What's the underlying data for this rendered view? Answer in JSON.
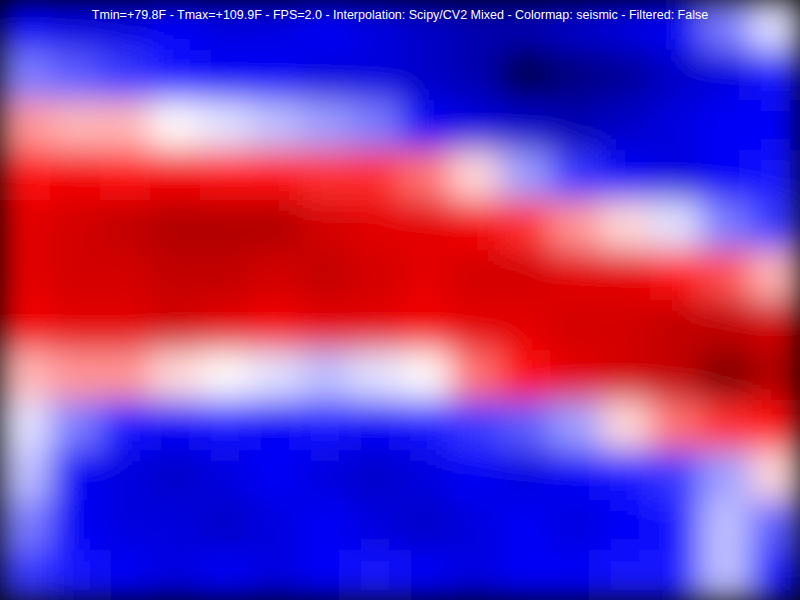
{
  "chart_data": {
    "type": "heatmap",
    "title": "Tmin=+79.8F - Tmax=+109.9F - FPS=2.0 - Interpolation: Scipy/CV2 Mixed - Colormap: seismic - Filtered: False",
    "color": "seismic",
    "tick_labels": false,
    "color_range": [
      79.8,
      109.9
    ],
    "cells": [
      [
        87,
        86,
        86,
        87,
        86,
        86,
        87,
        86,
        85,
        84,
        84,
        85,
        86,
        87,
        91,
        94
      ],
      [
        91,
        90,
        89,
        88,
        87,
        87,
        86,
        86,
        85,
        84,
        79.8,
        82,
        83,
        85,
        86,
        88
      ],
      [
        98,
        97,
        97,
        95,
        94,
        93,
        92,
        91,
        87,
        86,
        85,
        84,
        85,
        86,
        87,
        87
      ],
      [
        102,
        103,
        102,
        103,
        102,
        102,
        101,
        101,
        99,
        96,
        92,
        89,
        87,
        86,
        87,
        88
      ],
      [
        104,
        105,
        106,
        107,
        107,
        107,
        105,
        104,
        104,
        103,
        101,
        98,
        96,
        94,
        91,
        89
      ],
      [
        104,
        105,
        105,
        106,
        106,
        105,
        106,
        105,
        104,
        105,
        105,
        104,
        104,
        102,
        100,
        97
      ],
      [
        103,
        104,
        104,
        105,
        104,
        103,
        104,
        104,
        103,
        104,
        104,
        105,
        105,
        106,
        106,
        105
      ],
      [
        97,
        98,
        98,
        96,
        95,
        94,
        93,
        94,
        95,
        99,
        102,
        104,
        105,
        106,
        109.9,
        107
      ],
      [
        94,
        91,
        88,
        87,
        88,
        87,
        88,
        87,
        88,
        89,
        90,
        92,
        96,
        99,
        101,
        102
      ],
      [
        93,
        87,
        86,
        85,
        86,
        87,
        86,
        85,
        86,
        87,
        86,
        87,
        88,
        89,
        92,
        96
      ],
      [
        91,
        87,
        86,
        86,
        85,
        86,
        87,
        86,
        85,
        86,
        87,
        86,
        87,
        88,
        93,
        90
      ],
      [
        89,
        88,
        87,
        86,
        87,
        86,
        87,
        88,
        87,
        86,
        87,
        87,
        88,
        88,
        93,
        88
      ]
    ]
  }
}
